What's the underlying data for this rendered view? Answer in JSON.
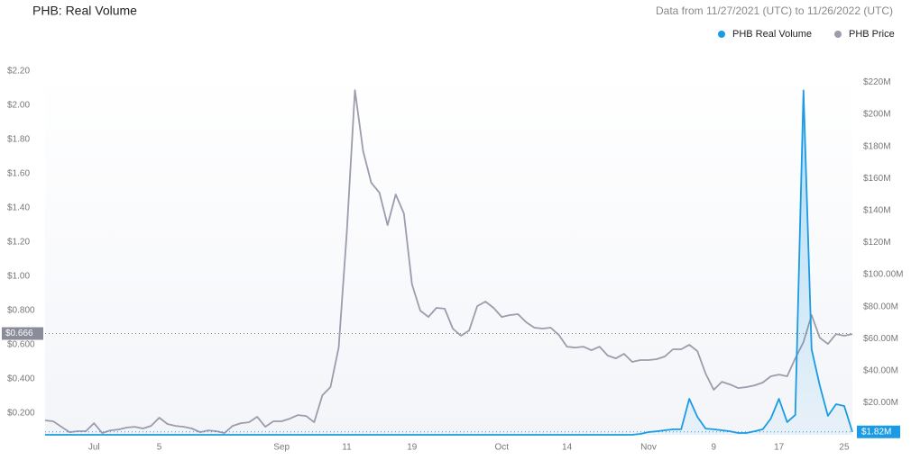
{
  "chart_data": {
    "type": "line",
    "title": "PHB: Real Volume",
    "subtitle": "Data from 11/27/2021 (UTC) to 11/26/2022 (UTC)",
    "categories": [
      null,
      null,
      null,
      null,
      null,
      null,
      "Jul",
      null,
      null,
      null,
      null,
      null,
      null,
      null,
      "5",
      null,
      null,
      null,
      null,
      null,
      null,
      null,
      null,
      null,
      null,
      null,
      null,
      null,
      null,
      "Sep",
      null,
      null,
      null,
      null,
      null,
      null,
      null,
      "11",
      null,
      null,
      null,
      null,
      null,
      null,
      null,
      "19",
      null,
      null,
      null,
      null,
      null,
      null,
      null,
      null,
      null,
      null,
      "Oct",
      null,
      null,
      null,
      null,
      null,
      null,
      null,
      "14",
      null,
      null,
      null,
      null,
      null,
      null,
      null,
      null,
      null,
      "Nov",
      null,
      null,
      null,
      null,
      null,
      null,
      null,
      "9",
      null,
      null,
      null,
      null,
      null,
      null,
      null,
      "17",
      null,
      null,
      null,
      null,
      null,
      null,
      null,
      "25",
      null
    ],
    "series": [
      {
        "name": "PHB Real Volume",
        "color": "#1a9be4",
        "axis": "y2",
        "values": [
          0,
          0,
          0,
          0,
          0,
          0,
          0,
          0,
          0,
          0,
          0,
          0,
          0,
          0,
          0,
          0,
          0,
          0,
          0,
          0,
          0,
          0,
          0,
          0,
          0,
          0,
          0,
          0,
          0,
          0,
          0,
          0,
          0,
          0,
          0,
          0,
          0,
          0,
          0,
          0,
          0,
          0,
          0,
          0,
          0,
          0,
          0,
          0,
          0,
          0,
          0,
          0,
          0,
          0,
          0,
          0,
          0,
          0,
          0,
          0,
          0,
          0,
          0,
          0,
          0,
          0,
          0,
          0,
          0,
          0,
          0,
          0,
          0,
          560000,
          1700000,
          2200000,
          2800000,
          3400000,
          3400000,
          22500000,
          11200000,
          3900000,
          3400000,
          2800000,
          2200000,
          1100000,
          1100000,
          2200000,
          3400000,
          10100000,
          22500000,
          7900000,
          12400000,
          215000000,
          53400000,
          30900000,
          11800000,
          19100000,
          18000000,
          1820000
        ]
      },
      {
        "name": "PHB Price",
        "color": "#9b9cac",
        "values": [
          0.158,
          0.153,
          0.121,
          0.089,
          0.095,
          0.095,
          0.142,
          0.084,
          0.1,
          0.105,
          0.116,
          0.121,
          0.111,
          0.126,
          0.174,
          0.137,
          0.126,
          0.121,
          0.111,
          0.089,
          0.1,
          0.095,
          0.084,
          0.126,
          0.142,
          0.147,
          0.179,
          0.121,
          0.153,
          0.153,
          0.168,
          0.189,
          0.184,
          0.147,
          0.305,
          0.353,
          0.584,
          1.258,
          2.089,
          1.732,
          1.547,
          1.489,
          1.3,
          1.479,
          1.368,
          0.953,
          0.8,
          0.763,
          0.816,
          0.811,
          0.695,
          0.653,
          0.684,
          0.826,
          0.853,
          0.816,
          0.763,
          0.774,
          0.779,
          0.732,
          0.7,
          0.695,
          0.7,
          0.658,
          0.589,
          0.584,
          0.589,
          0.568,
          0.589,
          0.537,
          0.521,
          0.547,
          0.5,
          0.511,
          0.511,
          0.516,
          0.532,
          0.574,
          0.574,
          0.6,
          0.563,
          0.432,
          0.337,
          0.384,
          0.368,
          0.347,
          0.353,
          0.363,
          0.379,
          0.416,
          0.426,
          0.416,
          0.521,
          0.616,
          0.774,
          0.642,
          0.605,
          0.663,
          0.653,
          0.663
        ]
      }
    ],
    "ylim": [
      0.074,
      2.2
    ],
    "yticks": [
      {
        "value": 2.2,
        "label": "$2.20"
      },
      {
        "value": 2.0,
        "label": "$2.00"
      },
      {
        "value": 1.8,
        "label": "$1.80"
      },
      {
        "value": 1.6,
        "label": "$1.60"
      },
      {
        "value": 1.4,
        "label": "$1.40"
      },
      {
        "value": 1.2,
        "label": "$1.20"
      },
      {
        "value": 1.0,
        "label": "$1.00"
      },
      {
        "value": 0.8,
        "label": "$0.800"
      },
      {
        "value": 0.6,
        "label": "$0.600"
      },
      {
        "value": 0.4,
        "label": "$0.400"
      },
      {
        "value": 0.2,
        "label": "$0.200"
      }
    ],
    "y2lim": [
      0,
      227000000
    ],
    "y2ticks": [
      {
        "value": 220000000,
        "label": "$220M"
      },
      {
        "value": 200000000,
        "label": "$200M"
      },
      {
        "value": 180000000,
        "label": "$180M"
      },
      {
        "value": 160000000,
        "label": "$160M"
      },
      {
        "value": 140000000,
        "label": "$140M"
      },
      {
        "value": 120000000,
        "label": "$120M"
      },
      {
        "value": 100000000,
        "label": "$100.00M"
      },
      {
        "value": 80000000,
        "label": "$80.00M"
      },
      {
        "value": 60000000,
        "label": "$60.00M"
      },
      {
        "value": 40000000,
        "label": "$40.00M"
      },
      {
        "value": 20000000,
        "label": "$20.00M"
      }
    ],
    "price_marker": {
      "value": 0.666,
      "label": "$0.666"
    },
    "volume_marker": {
      "value": 1820000,
      "label": "$1.82M"
    },
    "legend": "top-right"
  }
}
